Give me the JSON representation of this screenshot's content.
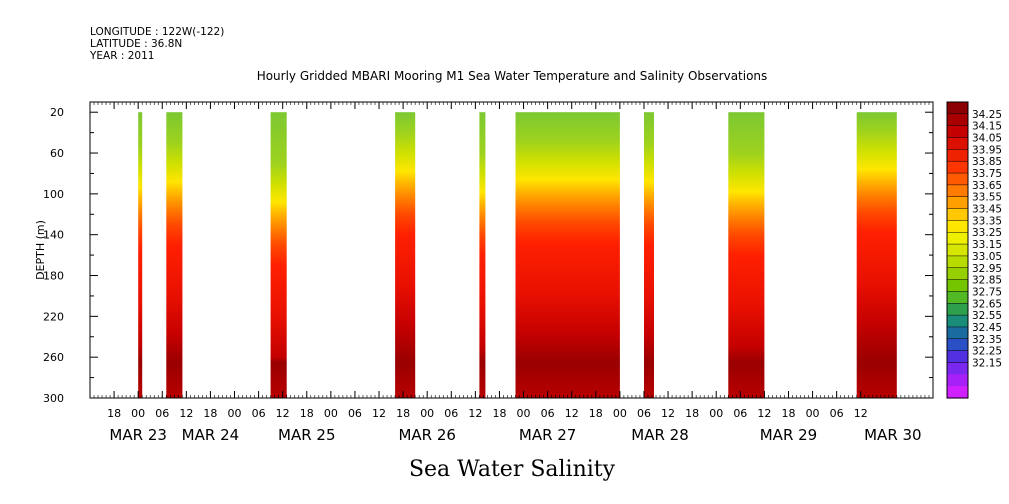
{
  "header": {
    "longitude": "LONGITUDE : 122W(-122)",
    "latitude": "LATITUDE : 36.8N",
    "year": "YEAR : 2011"
  },
  "chart_data": {
    "type": "heatmap",
    "title": "Hourly Gridded MBARI Mooring M1 Sea Water Temperature and Salinity Observations",
    "subtitle_label": "Sea Water Salinity",
    "ylabel": "DEPTH (m)",
    "xlabel": "",
    "x_unit": "hours since 2011-03-22 12:00",
    "xlim": [
      0,
      210
    ],
    "ylim": [
      300,
      10
    ],
    "y_ticks": [
      20,
      60,
      100,
      140,
      180,
      220,
      260,
      300
    ],
    "x_hour_ticks": [
      {
        "x": 6,
        "label": "18"
      },
      {
        "x": 12,
        "label": "00"
      },
      {
        "x": 18,
        "label": "06"
      },
      {
        "x": 24,
        "label": "12"
      },
      {
        "x": 30,
        "label": "18"
      },
      {
        "x": 36,
        "label": "00"
      },
      {
        "x": 42,
        "label": "06"
      },
      {
        "x": 48,
        "label": "12"
      },
      {
        "x": 54,
        "label": "18"
      },
      {
        "x": 60,
        "label": "00"
      },
      {
        "x": 66,
        "label": "06"
      },
      {
        "x": 72,
        "label": "12"
      },
      {
        "x": 78,
        "label": "18"
      },
      {
        "x": 84,
        "label": "00"
      },
      {
        "x": 90,
        "label": "06"
      },
      {
        "x": 96,
        "label": "12"
      },
      {
        "x": 102,
        "label": "18"
      },
      {
        "x": 108,
        "label": "00"
      },
      {
        "x": 114,
        "label": "06"
      },
      {
        "x": 120,
        "label": "12"
      },
      {
        "x": 126,
        "label": "18"
      },
      {
        "x": 132,
        "label": "00"
      },
      {
        "x": 138,
        "label": "06"
      },
      {
        "x": 144,
        "label": "12"
      },
      {
        "x": 150,
        "label": "18"
      },
      {
        "x": 156,
        "label": "00"
      },
      {
        "x": 162,
        "label": "06"
      },
      {
        "x": 168,
        "label": "12"
      },
      {
        "x": 174,
        "label": "18"
      },
      {
        "x": 180,
        "label": "00"
      },
      {
        "x": 186,
        "label": "06"
      },
      {
        "x": 192,
        "label": "12"
      }
    ],
    "x_day_labels": [
      {
        "x": 12,
        "label": "MAR 23"
      },
      {
        "x": 30,
        "label": "MAR 24"
      },
      {
        "x": 54,
        "label": "MAR 25"
      },
      {
        "x": 84,
        "label": "MAR 26"
      },
      {
        "x": 114,
        "label": "MAR 27"
      },
      {
        "x": 142,
        "label": "MAR 28"
      },
      {
        "x": 174,
        "label": "MAR 29"
      },
      {
        "x": 200,
        "label": "MAR 30"
      }
    ],
    "colorbar": {
      "levels": [
        "34.25",
        "34.15",
        "34.05",
        "33.95",
        "33.85",
        "33.75",
        "33.65",
        "33.55",
        "33.45",
        "33.35",
        "33.25",
        "33.15",
        "33.05",
        "32.95",
        "32.85",
        "32.75",
        "32.65",
        "32.55",
        "32.45",
        "32.35",
        "32.25",
        "32.15"
      ],
      "colors": [
        "#8b0000",
        "#a80000",
        "#c40000",
        "#dc1000",
        "#ee2200",
        "#ff3600",
        "#ff5a00",
        "#ff7c00",
        "#ffa000",
        "#ffc800",
        "#ffe600",
        "#eef000",
        "#d6e600",
        "#b8dc00",
        "#96d000",
        "#74c400",
        "#52b824",
        "#2ea04c",
        "#1a8c7a",
        "#1a6ca0",
        "#2a50c8",
        "#5030e0",
        "#7a28f0",
        "#a820f8",
        "#d020ff"
      ]
    },
    "segments": [
      {
        "x0": 12.0,
        "x1": 13.0,
        "mix": 0.3,
        "halocline_depth": 95
      },
      {
        "x0": 19.0,
        "x1": 23.0,
        "mix": 0.5,
        "halocline_depth": 90
      },
      {
        "x0": 45.0,
        "x1": 49.0,
        "mix": 0.4,
        "halocline_depth": 110
      },
      {
        "x0": 76.0,
        "x1": 81.0,
        "mix": 0.7,
        "halocline_depth": 80
      },
      {
        "x0": 97.0,
        "x1": 98.5,
        "mix": 0.5,
        "halocline_depth": 100
      },
      {
        "x0": 106.0,
        "x1": 132.0,
        "mix": 0.8,
        "halocline_depth": 88
      },
      {
        "x0": 138.0,
        "x1": 140.5,
        "mix": 0.4,
        "halocline_depth": 90
      },
      {
        "x0": 159.0,
        "x1": 168.0,
        "mix": 0.7,
        "halocline_depth": 100
      },
      {
        "x0": 191.0,
        "x1": 201.0,
        "mix": 0.9,
        "halocline_depth": 78
      }
    ],
    "grid": false,
    "legend": "right colorbar"
  }
}
